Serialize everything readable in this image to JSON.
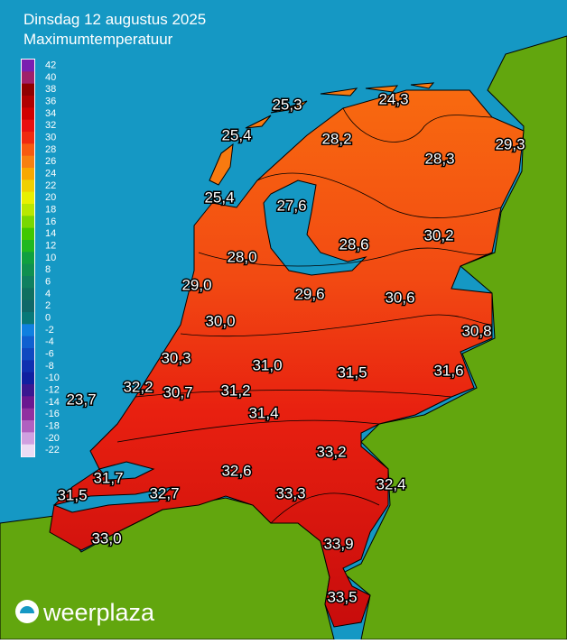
{
  "header": {
    "title": "Dinsdag 12 augustus 2025",
    "subtitle": "Maximumtemperatuur"
  },
  "legend": {
    "ticks": [
      42,
      40,
      38,
      36,
      34,
      32,
      30,
      28,
      26,
      24,
      22,
      20,
      18,
      16,
      14,
      12,
      10,
      8,
      6,
      4,
      2,
      0,
      -2,
      -4,
      -6,
      -8,
      -10,
      -12,
      -14,
      -16,
      -18,
      -20,
      -22
    ],
    "colors": [
      "#7a1fb0",
      "#a0206a",
      "#900000",
      "#b00000",
      "#d00000",
      "#e81010",
      "#f02a10",
      "#f85a10",
      "#f88010",
      "#f8a800",
      "#f0d000",
      "#e8f000",
      "#b8e800",
      "#78d800",
      "#40c800",
      "#20b820",
      "#10a040",
      "#109050",
      "#108060",
      "#107060",
      "#106868",
      "#087878",
      "#1080e0",
      "#1060d0",
      "#1048c0",
      "#1030b0",
      "#1020a0",
      "#3a1890",
      "#6a1890",
      "#9030a0",
      "#b060c0",
      "#d0a0e0",
      "#ecdcf4"
    ]
  },
  "stations": [
    "25,3",
    "24,3",
    "25,4",
    "28,2",
    "29,3",
    "28,3",
    "25,4",
    "27,6",
    "28,6",
    "30,2",
    "28,0",
    "29,0",
    "29,6",
    "30,6",
    "30,0",
    "30,8",
    "30,3",
    "31,0",
    "31,5",
    "31,6",
    "32,2",
    "30,7",
    "31,2",
    "23,7",
    "31,4",
    "33,2",
    "32,6",
    "31,7",
    "32,4",
    "31,5",
    "32,7",
    "33,3",
    "33,0",
    "33,9",
    "33,5"
  ],
  "brand": "weerplaza"
}
